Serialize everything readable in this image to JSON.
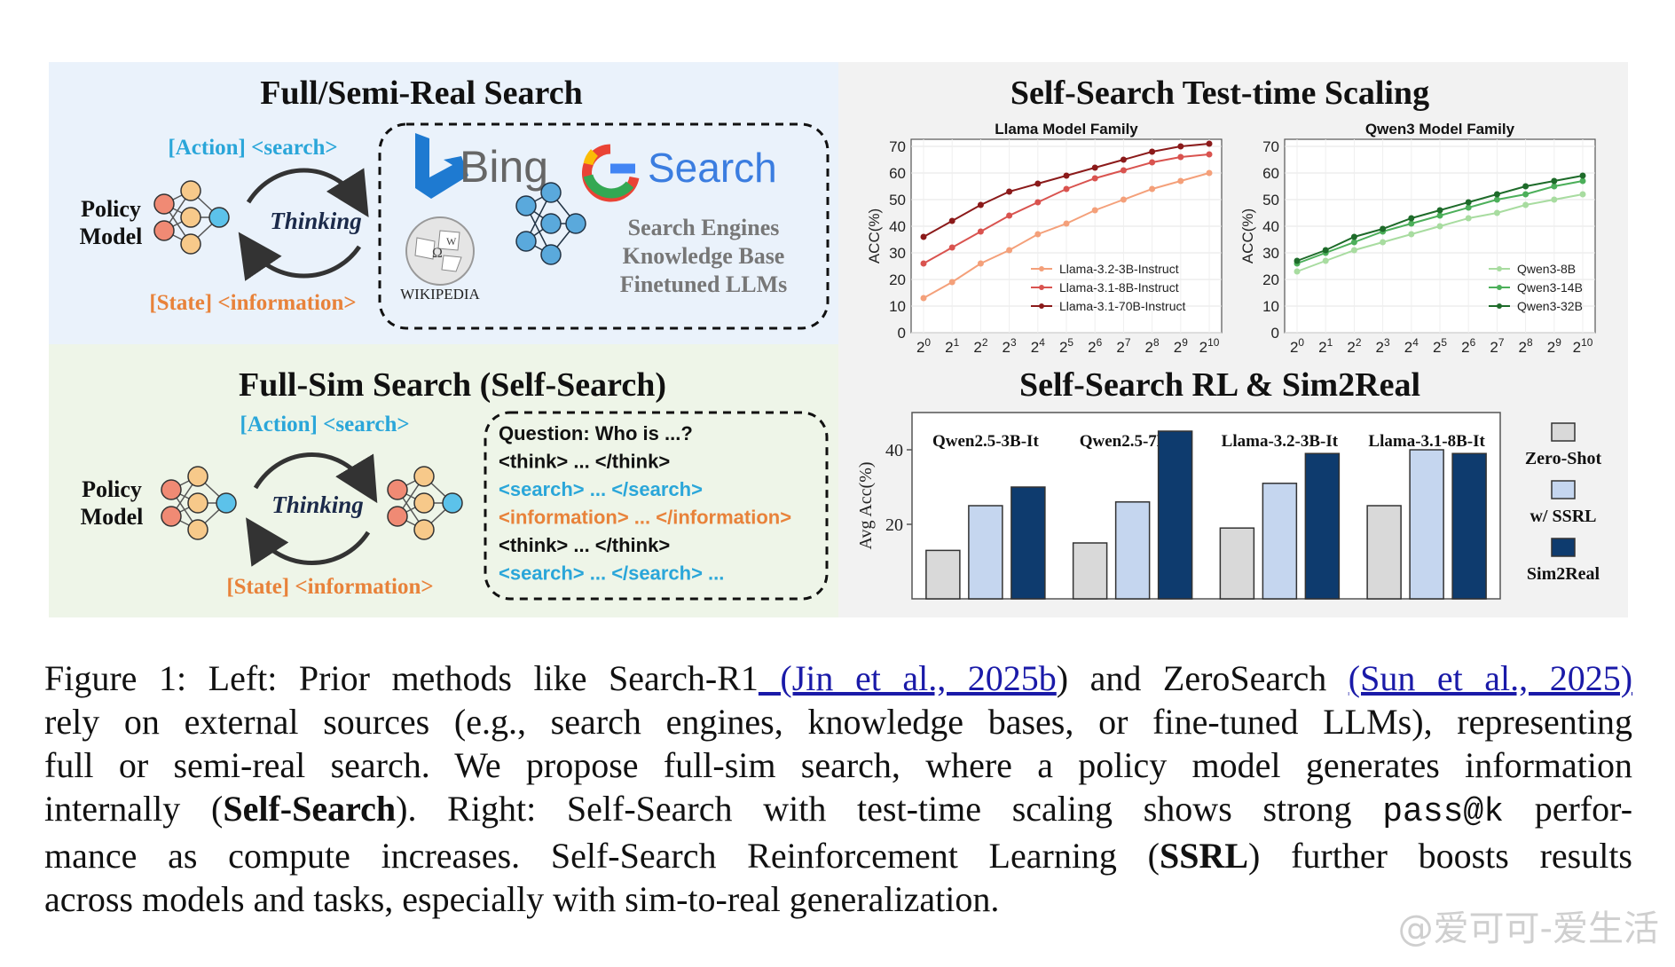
{
  "panels": {
    "top_left": {
      "title": "Full/Semi-Real Search",
      "action": "[Action] <search>",
      "state": "[State] <information>",
      "thinking": "Thinking",
      "policy_line1": "Policy",
      "policy_line2": "Model",
      "bing": "Bing",
      "google_search": "Search",
      "wikipedia": "WIKIPEDIA",
      "sources": [
        "Search Engines",
        "Knowledge Base",
        "Finetuned LLMs"
      ]
    },
    "bottom_left": {
      "title": "Full-Sim Search (Self-Search)",
      "action": "[Action] <search>",
      "state": "[State] <information>",
      "thinking": "Thinking",
      "policy_line1": "Policy",
      "policy_line2": "Model",
      "trace": [
        {
          "text": "Question: Who is ...?",
          "color": "#111111"
        },
        {
          "text": "<think> ... </think>",
          "color": "#111111"
        },
        {
          "text": "<search> ... </search>",
          "color": "#2aa6d9"
        },
        {
          "text": "<information> ... </information>",
          "color": "#e8823a"
        },
        {
          "text": "<think> ... </think>",
          "color": "#111111"
        },
        {
          "text": "<search> ... </search> ...",
          "color": "#2aa6d9"
        }
      ]
    },
    "top_right": {
      "title": "Self-Search Test-time Scaling"
    },
    "bottom_right": {
      "title": "Self-Search RL & Sim2Real"
    }
  },
  "colors": {
    "action": "#2aa6d9",
    "state": "#e8823a",
    "bg_top_left": "#eaf2fb",
    "bg_bottom_left": "#eef5e8",
    "bg_right": "#f2f2f2"
  },
  "chart_data": [
    {
      "type": "line",
      "title": "Llama Model Family",
      "ylabel": "ACC(%)",
      "x": [
        "2^0",
        "2^1",
        "2^2",
        "2^3",
        "2^4",
        "2^5",
        "2^6",
        "2^7",
        "2^8",
        "2^9",
        "2^10"
      ],
      "ylim": [
        0,
        70
      ],
      "yticks": [
        0,
        10,
        20,
        30,
        40,
        50,
        60,
        70
      ],
      "legend_position": "bottom-right",
      "series": [
        {
          "name": "Llama-3.2-3B-Instruct",
          "color": "#f4a07a",
          "values": [
            13,
            19,
            26,
            31,
            37,
            41,
            46,
            50,
            54,
            57,
            60
          ]
        },
        {
          "name": "Llama-3.1-8B-Instruct",
          "color": "#d9534f",
          "values": [
            26,
            32,
            38,
            44,
            49,
            54,
            58,
            61,
            64,
            66,
            67
          ]
        },
        {
          "name": "Llama-3.1-70B-Instruct",
          "color": "#8b1a1a",
          "values": [
            36,
            42,
            48,
            53,
            56,
            59,
            62,
            65,
            68,
            70,
            71
          ]
        }
      ]
    },
    {
      "type": "line",
      "title": "Qwen3 Model Family",
      "ylabel": "ACC(%)",
      "x": [
        "2^0",
        "2^1",
        "2^2",
        "2^3",
        "2^4",
        "2^5",
        "2^6",
        "2^7",
        "2^8",
        "2^9",
        "2^10"
      ],
      "ylim": [
        0,
        70
      ],
      "yticks": [
        0,
        10,
        20,
        30,
        40,
        50,
        60,
        70
      ],
      "legend_position": "bottom-right",
      "series": [
        {
          "name": "Qwen3-8B",
          "color": "#a8dca0",
          "values": [
            23,
            27,
            31,
            34,
            37,
            40,
            43,
            45,
            48,
            50,
            52
          ]
        },
        {
          "name": "Qwen3-14B",
          "color": "#4caf5a",
          "values": [
            26,
            30,
            34,
            38,
            41,
            44,
            47,
            50,
            52,
            55,
            57
          ]
        },
        {
          "name": "Qwen3-32B",
          "color": "#1e6b2a",
          "values": [
            27,
            31,
            36,
            39,
            43,
            46,
            49,
            52,
            55,
            57,
            59
          ]
        }
      ]
    },
    {
      "type": "bar",
      "ylabel": "Avg Acc(%)",
      "ylim": [
        0,
        50
      ],
      "yticks": [
        20,
        40
      ],
      "categories": [
        "Qwen2.5-3B-It",
        "Qwen2.5-7B-It",
        "Llama-3.2-3B-It",
        "Llama-3.1-8B-It"
      ],
      "legend_position": "right",
      "series": [
        {
          "name": "Zero-Shot",
          "color": "#d9d9d9",
          "values": [
            13,
            15,
            19,
            25
          ]
        },
        {
          "name": "w/ SSRL",
          "color": "#c5d6ef",
          "values": [
            25,
            26,
            31,
            40
          ]
        },
        {
          "name": "Sim2Real",
          "color": "#0e3b6e",
          "values": [
            30,
            45,
            39,
            39
          ]
        }
      ]
    }
  ],
  "caption": {
    "label": "Figure 1:",
    "l1_a": "Left: Prior methods like Search-R1",
    "cite1": " (Jin et al., 2025b",
    "l1_b": ") and ZeroSearch",
    "cite2": "(Sun et al., 2025)",
    "l2": "rely on external sources (e.g., search engines, knowledge bases, or fine-tuned LLMs), representing",
    "l3": "full or semi-real search.  We propose full-sim search, where a policy model generates information",
    "l4_a": "internally (",
    "l4_bold": "Self-Search",
    "l4_b": ").  Right:  Self-Search with test-time scaling shows strong",
    "l4_mono": "pass@k",
    "l4_c": "perfor-",
    "l5_a": "mance as compute increases.  Self-Search Reinforcement Learning (",
    "l5_bold": "SSRL",
    "l5_b": ") further boosts results",
    "l6": "across models and tasks, especially with sim-to-real generalization."
  },
  "watermark": "@爱可可-爱生活"
}
